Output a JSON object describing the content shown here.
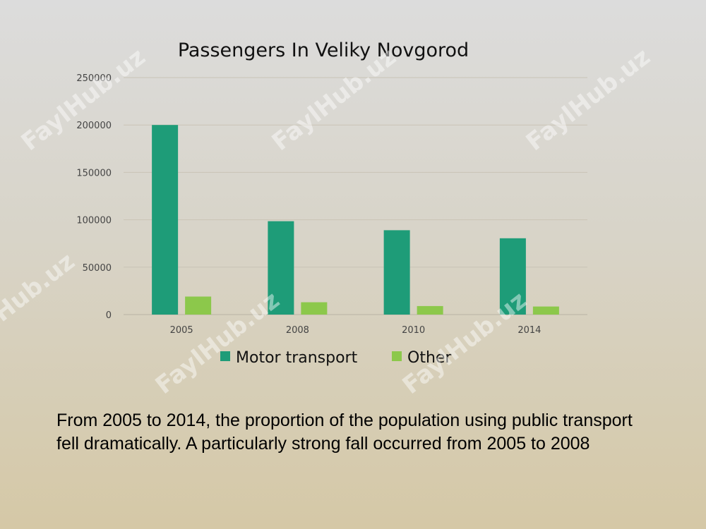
{
  "chart_data": {
    "type": "bar",
    "title": "Passengers In Veliky Novgorod",
    "categories": [
      "2005",
      "2008",
      "2010",
      "2014"
    ],
    "series": [
      {
        "name": "Motor transport",
        "values": [
          200000,
          98500,
          89000,
          80500
        ],
        "color": "#1e9c78"
      },
      {
        "name": "Other",
        "values": [
          19000,
          13000,
          9000,
          8500
        ],
        "color": "#8cc84b"
      }
    ],
    "ylim": [
      0,
      250000
    ],
    "yticks": [
      0,
      50000,
      100000,
      150000,
      200000,
      250000
    ],
    "xlabel": "",
    "ylabel": "",
    "grid": true,
    "legend_position": "bottom"
  },
  "caption": "From 2005 to 2014, the proportion of the population using public transport fell dramatically. A particularly strong fall occurred from 2005 to 2008",
  "watermark": "FaylHub.uz"
}
